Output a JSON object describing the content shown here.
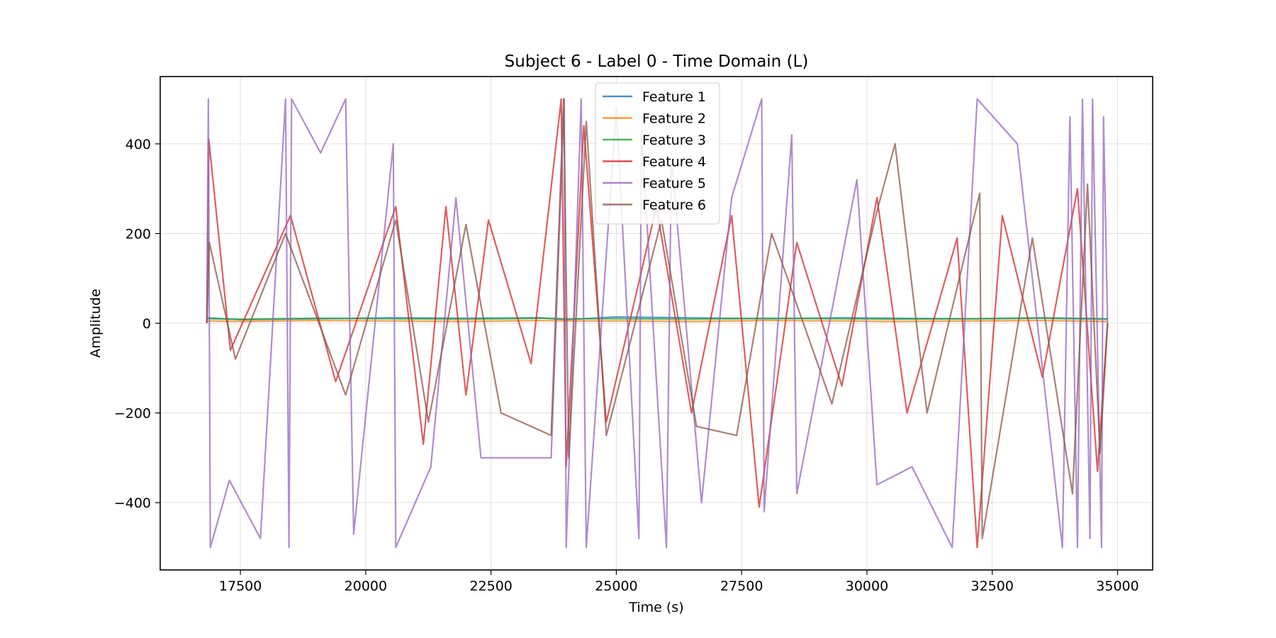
{
  "chart_data": {
    "type": "line",
    "title": "Subject 6 - Label 0 - Time Domain (L)",
    "xlabel": "Time (s)",
    "ylabel": "Amplitude",
    "xlim": [
      15900,
      35700
    ],
    "ylim": [
      -550,
      550
    ],
    "xticks": [
      17500,
      20000,
      22500,
      25000,
      27500,
      30000,
      32500,
      35000
    ],
    "xtick_labels": [
      "17500",
      "20000",
      "22500",
      "25000",
      "27500",
      "30000",
      "32500",
      "35000"
    ],
    "yticks": [
      -400,
      -200,
      0,
      200,
      400
    ],
    "ytick_labels": [
      "−400",
      "−200",
      "0",
      "200",
      "400"
    ],
    "grid": true,
    "legend_position": "top-center",
    "series": [
      {
        "name": "Feature 1",
        "color": "#1f77b4",
        "x": [
          16830,
          17500,
          19000,
          20500,
          22000,
          23500,
          24000,
          25000,
          26500,
          28000,
          29500,
          30500,
          32000,
          33500,
          34800
        ],
        "y": [
          12,
          8,
          10,
          12,
          11,
          12,
          8,
          14,
          12,
          10,
          12,
          11,
          10,
          12,
          10
        ]
      },
      {
        "name": "Feature 2",
        "color": "#ff7f0e",
        "x": [
          16830,
          17500,
          19000,
          20500,
          22000,
          23500,
          24000,
          25000,
          26500,
          28000,
          29500,
          30500,
          32000,
          33500,
          34800
        ],
        "y": [
          5,
          4,
          6,
          5,
          4,
          6,
          5,
          5,
          4,
          6,
          5,
          4,
          5,
          6,
          4
        ]
      },
      {
        "name": "Feature 3",
        "color": "#2ca02c",
        "x": [
          16830,
          17500,
          19000,
          20500,
          22000,
          23500,
          24000,
          25000,
          26500,
          28000,
          29500,
          30500,
          32000,
          33500,
          34800
        ],
        "y": [
          10,
          9,
          11,
          10,
          9,
          11,
          10,
          10,
          9,
          11,
          10,
          9,
          10,
          11,
          9
        ]
      },
      {
        "name": "Feature 4",
        "color": "#d62728",
        "x": [
          16830,
          16870,
          17300,
          18500,
          19400,
          20600,
          21150,
          21600,
          22000,
          22450,
          23300,
          23900,
          24000,
          24350,
          24800,
          25800,
          26500,
          27300,
          27850,
          28600,
          29500,
          30200,
          30800,
          31800,
          32200,
          32700,
          33500,
          34200,
          34600,
          34800
        ],
        "y": [
          0,
          410,
          -60,
          240,
          -130,
          260,
          -270,
          260,
          -160,
          230,
          -90,
          500,
          -320,
          440,
          -220,
          260,
          -200,
          240,
          -410,
          180,
          -140,
          280,
          -200,
          190,
          -500,
          240,
          -120,
          300,
          -330,
          0
        ]
      },
      {
        "name": "Feature 5",
        "color": "#9467bd",
        "x": [
          16830,
          16860,
          16900,
          17280,
          17900,
          18400,
          18470,
          18520,
          19100,
          19600,
          19760,
          20550,
          20600,
          21300,
          21800,
          22300,
          23700,
          23960,
          24000,
          24300,
          24400,
          25000,
          25450,
          25500,
          26000,
          26100,
          26700,
          27300,
          27900,
          27950,
          28500,
          28600,
          29800,
          30200,
          30900,
          31700,
          32200,
          33000,
          33900,
          34050,
          34200,
          34300,
          34450,
          34500,
          34680,
          34720,
          34800
        ],
        "y": [
          0,
          500,
          -500,
          -350,
          -480,
          500,
          -500,
          500,
          380,
          500,
          -470,
          400,
          -500,
          -320,
          280,
          -300,
          -300,
          500,
          -500,
          500,
          -500,
          480,
          -480,
          430,
          -500,
          370,
          -400,
          280,
          500,
          -420,
          420,
          -380,
          320,
          -360,
          -320,
          -500,
          500,
          400,
          -500,
          460,
          -500,
          500,
          -480,
          500,
          -500,
          460,
          0
        ]
      },
      {
        "name": "Feature 6",
        "color": "#8c564b",
        "x": [
          16830,
          16880,
          17400,
          18400,
          19600,
          20600,
          21250,
          22000,
          22700,
          23700,
          23950,
          24050,
          24400,
          24800,
          25900,
          26600,
          27400,
          28100,
          29300,
          30200,
          30560,
          31200,
          32250,
          32300,
          33300,
          34100,
          34400,
          34650,
          34800
        ],
        "y": [
          0,
          180,
          -80,
          200,
          -160,
          230,
          -220,
          220,
          -200,
          -250,
          500,
          -300,
          450,
          -250,
          230,
          -230,
          -250,
          200,
          -180,
          250,
          400,
          -200,
          290,
          -480,
          190,
          -380,
          310,
          -290,
          0
        ]
      }
    ]
  }
}
